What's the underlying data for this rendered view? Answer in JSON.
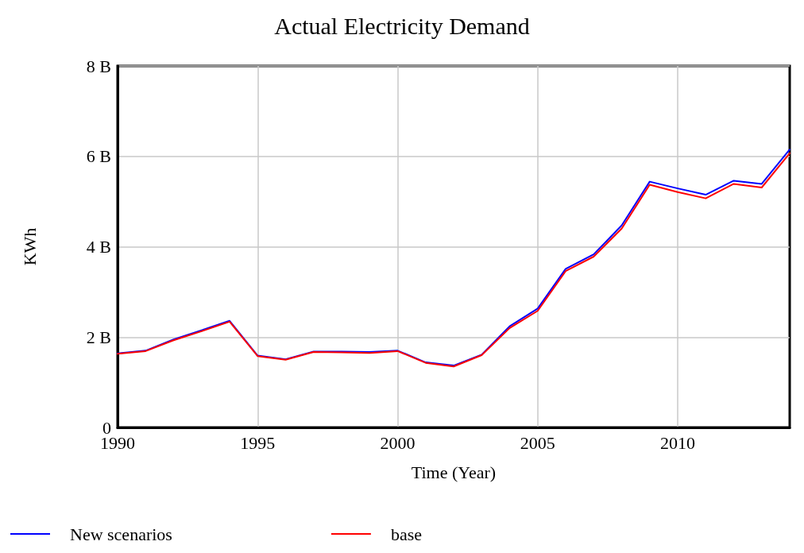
{
  "chart_data": {
    "type": "line",
    "title": "Actual Electricity Demand",
    "xlabel": "Time (Year)",
    "ylabel": "KWh",
    "x": [
      1990,
      1991,
      1992,
      1993,
      1994,
      1995,
      1996,
      1997,
      1998,
      1999,
      2000,
      2001,
      2002,
      2003,
      2004,
      2005,
      2006,
      2007,
      2008,
      2009,
      2010,
      2011,
      2012,
      2013,
      2014
    ],
    "series": [
      {
        "name": "New scenarios",
        "color": "#0000ff",
        "values": [
          1640000000,
          1700000000,
          1950000000,
          2150000000,
          2360000000,
          1590000000,
          1510000000,
          1680000000,
          1680000000,
          1670000000,
          1700000000,
          1440000000,
          1370000000,
          1610000000,
          2240000000,
          2630000000,
          3510000000,
          3830000000,
          4470000000,
          5440000000,
          5290000000,
          5150000000,
          5460000000,
          5390000000,
          6150000000
        ]
      },
      {
        "name": "base",
        "color": "#ff0000",
        "values": [
          1630000000,
          1690000000,
          1930000000,
          2130000000,
          2340000000,
          1580000000,
          1500000000,
          1670000000,
          1660000000,
          1650000000,
          1690000000,
          1430000000,
          1350000000,
          1600000000,
          2200000000,
          2580000000,
          3460000000,
          3780000000,
          4400000000,
          5370000000,
          5210000000,
          5070000000,
          5390000000,
          5310000000,
          6070000000
        ]
      }
    ],
    "xlim": [
      1990,
      2014
    ],
    "xticks": [
      1990,
      1995,
      2000,
      2005,
      2010
    ],
    "ylim": [
      0,
      8000000000
    ],
    "yticks": [
      0,
      {
        "value": 2000000000,
        "label": "2 B"
      },
      {
        "value": 4000000000,
        "label": "4 B"
      },
      {
        "value": 6000000000,
        "label": "6 B"
      },
      {
        "value": 8000000000,
        "label": "8 B"
      }
    ],
    "grid": true,
    "legend": "bottom",
    "marker": "none",
    "line_style": "solid"
  }
}
